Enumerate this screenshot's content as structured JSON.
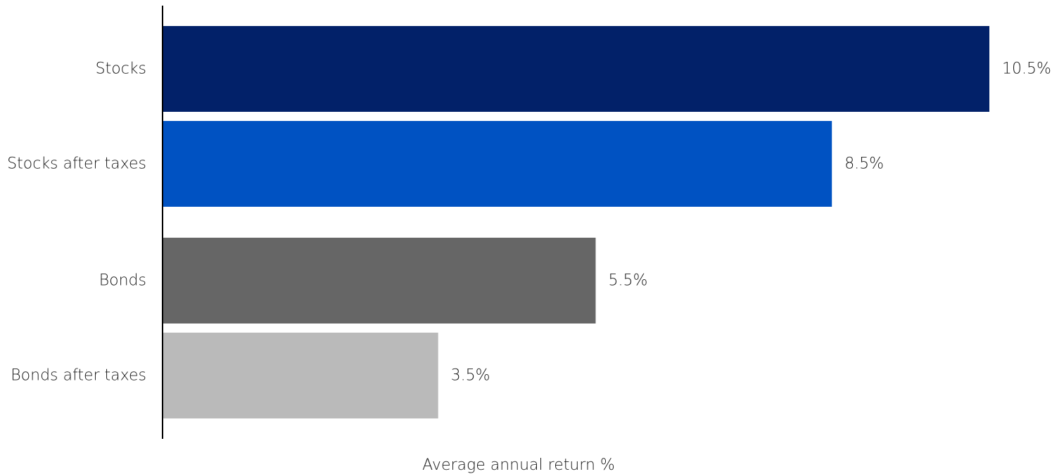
{
  "chart_data": {
    "type": "bar",
    "orientation": "horizontal",
    "categories": [
      "Stocks",
      "Stocks after taxes",
      "Bonds",
      "Bonds after taxes"
    ],
    "values": [
      10.5,
      8.5,
      5.5,
      3.5
    ],
    "value_labels": [
      "10.5%",
      "8.5%",
      "5.5%",
      "3.5%"
    ],
    "colors": [
      "#022169",
      "#0052c2",
      "#666666",
      "#bababa"
    ],
    "xlabel": "Average annual return %",
    "ylabel": "",
    "xlim": [
      0,
      10.5
    ],
    "grid": false,
    "legend": "none"
  }
}
